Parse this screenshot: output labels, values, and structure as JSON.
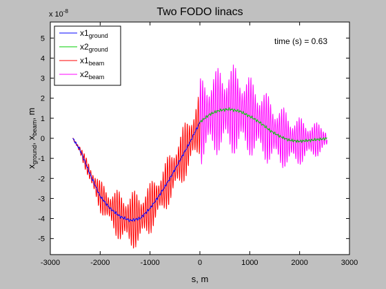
{
  "chart_data": {
    "type": "line",
    "title": "Two FODO linacs",
    "xlabel": "s, m",
    "ylabel": {
      "base": "x",
      "sub1": "ground",
      "sep": ", x",
      "sub2": "beam",
      "suffix": ", m"
    },
    "exponent": {
      "prefix": "x 10",
      "power": "-8"
    },
    "annotation": "time (s) = 0.63",
    "xlim": [
      -3000,
      3000
    ],
    "ylim": [
      -5.8,
      5.8
    ],
    "xticks": [
      -3000,
      -2000,
      -1000,
      0,
      1000,
      2000,
      3000
    ],
    "yticks": [
      -5,
      -4,
      -3,
      -2,
      -1,
      0,
      1,
      2,
      3,
      4,
      5
    ],
    "grid": false,
    "legend_position": "top-left",
    "series": [
      {
        "base": "x1",
        "sub": "ground",
        "color": "#0000ff",
        "style": "ground",
        "x": [
          -2550,
          -2400,
          -2200,
          -2000,
          -1800,
          -1600,
          -1400,
          -1200,
          -1000,
          -800,
          -600,
          -400,
          -200,
          0
        ],
        "y": [
          0,
          -0.6,
          -1.8,
          -2.9,
          -3.5,
          -3.9,
          -4.1,
          -4.0,
          -3.5,
          -2.8,
          -2.0,
          -1.1,
          -0.2,
          0.8
        ]
      },
      {
        "base": "x2",
        "sub": "ground",
        "color": "#00cc00",
        "style": "ground",
        "x": [
          0,
          200,
          400,
          600,
          800,
          1000,
          1200,
          1400,
          1600,
          1800,
          2000,
          2200,
          2400,
          2550
        ],
        "y": [
          0.8,
          1.2,
          1.4,
          1.45,
          1.35,
          1.1,
          0.8,
          0.4,
          0.1,
          -0.1,
          -0.15,
          -0.1,
          -0.05,
          0
        ]
      },
      {
        "base": "x1",
        "sub": "beam",
        "color": "#ff0000",
        "style": "beam",
        "x": [
          -2550,
          -2400,
          -2200,
          -2000,
          -1800,
          -1600,
          -1400,
          -1200,
          -1000,
          -800,
          -600,
          -400,
          -200,
          0
        ],
        "center": [
          0,
          -0.6,
          -1.8,
          -2.9,
          -3.5,
          -3.9,
          -4.1,
          -4.0,
          -3.5,
          -2.8,
          -2.0,
          -1.1,
          -0.2,
          0.8
        ],
        "amplitude": [
          0.05,
          0.2,
          0.5,
          0.8,
          1.0,
          1.3,
          1.5,
          1.4,
          1.3,
          1.2,
          1.3,
          1.4,
          1.5,
          1.6
        ]
      },
      {
        "base": "x2",
        "sub": "beam",
        "color": "#ff00ff",
        "style": "beam",
        "x": [
          0,
          200,
          400,
          600,
          800,
          1000,
          1200,
          1400,
          1600,
          1800,
          2000,
          2200,
          2400,
          2550
        ],
        "center": [
          0.8,
          1.2,
          1.4,
          1.45,
          1.35,
          1.1,
          0.8,
          0.4,
          0.1,
          -0.1,
          -0.15,
          -0.1,
          -0.05,
          0
        ],
        "amplitude": [
          2.2,
          2.1,
          2.2,
          2.3,
          2.2,
          2.0,
          1.9,
          1.7,
          1.6,
          1.4,
          1.2,
          1.0,
          0.8,
          0.6
        ]
      }
    ]
  }
}
